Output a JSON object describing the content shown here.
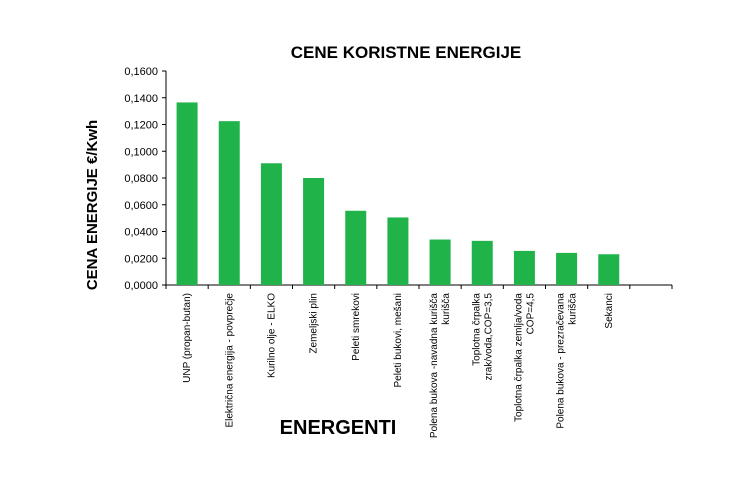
{
  "chart_data": {
    "type": "bar",
    "title": "CENE KORISTNE ENERGIJE",
    "xlabel": "ENERGENTI",
    "ylabel": "CENA ENERGIJE €/Kwh",
    "ylim": [
      0,
      0.16
    ],
    "yticks": [
      "0,0000",
      "0,0200",
      "0,0400",
      "0,0600",
      "0,0800",
      "0,1000",
      "0,1200",
      "0,1400",
      "0,1600"
    ],
    "categories": [
      [
        "UNP (propan-butan)"
      ],
      [
        "Električna energija - povprečje"
      ],
      [
        "Kurilno olje - ELKO"
      ],
      [
        "Zemeljski plin"
      ],
      [
        "Peleti smrekovi"
      ],
      [
        "Peleti bukovi, mešani"
      ],
      [
        "Polena bukova -navadna kurišča",
        "kurišča"
      ],
      [
        "Toplotna črpalka",
        "zrak/voda,COP=3,5"
      ],
      [
        "Toplotna črpalka zemlja/voda",
        "COP=4,5"
      ],
      [
        "Polena bukova - prezračevana",
        "kurišča"
      ],
      [
        "Sekanci"
      ],
      [
        ""
      ]
    ],
    "values": [
      0.1365,
      0.1225,
      0.091,
      0.08,
      0.0555,
      0.0505,
      0.034,
      0.033,
      0.0255,
      0.024,
      0.023,
      null
    ],
    "bar_color": "#1fb34a",
    "grid": false,
    "legend": "none"
  }
}
